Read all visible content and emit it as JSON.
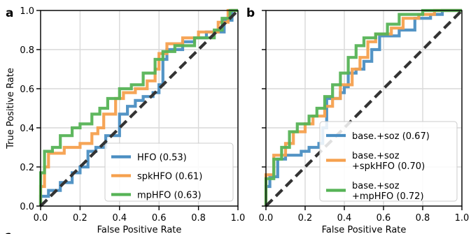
{
  "chart_data": [
    {
      "type": "line",
      "panel_label": "a",
      "xlabel": "False Positive Rate",
      "ylabel": "True Positive Rate",
      "xlim": [
        0,
        1
      ],
      "ylim": [
        0,
        1
      ],
      "xticks": [
        "0.0",
        "0.2",
        "0.4",
        "0.6",
        "0.8",
        "1.0"
      ],
      "yticks": [
        "0.0",
        "0.2",
        "0.4",
        "0.6",
        "0.8",
        "1.0"
      ],
      "show_y_tick_labels": true,
      "grid": true,
      "legend_position": "lower-right",
      "chance_line": true,
      "series": [
        {
          "name": "HFO (0.53)",
          "color": "#4a8ec2",
          "points": [
            [
              0,
              0
            ],
            [
              0,
              0.05
            ],
            [
              0.04,
              0.05
            ],
            [
              0.04,
              0.08
            ],
            [
              0.1,
              0.08
            ],
            [
              0.1,
              0.12
            ],
            [
              0.16,
              0.12
            ],
            [
              0.16,
              0.17
            ],
            [
              0.2,
              0.17
            ],
            [
              0.2,
              0.2
            ],
            [
              0.24,
              0.2
            ],
            [
              0.24,
              0.28
            ],
            [
              0.28,
              0.28
            ],
            [
              0.28,
              0.3
            ],
            [
              0.33,
              0.3
            ],
            [
              0.33,
              0.36
            ],
            [
              0.4,
              0.36
            ],
            [
              0.4,
              0.47
            ],
            [
              0.44,
              0.47
            ],
            [
              0.44,
              0.51
            ],
            [
              0.48,
              0.51
            ],
            [
              0.48,
              0.54
            ],
            [
              0.52,
              0.54
            ],
            [
              0.52,
              0.56
            ],
            [
              0.57,
              0.56
            ],
            [
              0.57,
              0.58
            ],
            [
              0.6,
              0.58
            ],
            [
              0.6,
              0.62
            ],
            [
              0.62,
              0.62
            ],
            [
              0.62,
              0.75
            ],
            [
              0.64,
              0.75
            ],
            [
              0.64,
              0.8
            ],
            [
              0.72,
              0.8
            ],
            [
              0.72,
              0.84
            ],
            [
              0.78,
              0.84
            ],
            [
              0.78,
              0.86
            ],
            [
              0.84,
              0.86
            ],
            [
              0.84,
              0.89
            ],
            [
              0.93,
              0.89
            ],
            [
              0.93,
              0.95
            ],
            [
              0.97,
              0.95
            ],
            [
              0.97,
              1.0
            ],
            [
              1.0,
              1.0
            ]
          ]
        },
        {
          "name": "spkHFO (0.61)",
          "color": "#f5a04e",
          "points": [
            [
              0,
              0
            ],
            [
              0,
              0.1
            ],
            [
              0.02,
              0.1
            ],
            [
              0.02,
              0.2
            ],
            [
              0.04,
              0.2
            ],
            [
              0.04,
              0.27
            ],
            [
              0.12,
              0.27
            ],
            [
              0.12,
              0.3
            ],
            [
              0.2,
              0.3
            ],
            [
              0.2,
              0.32
            ],
            [
              0.26,
              0.32
            ],
            [
              0.26,
              0.37
            ],
            [
              0.29,
              0.37
            ],
            [
              0.29,
              0.4
            ],
            [
              0.32,
              0.4
            ],
            [
              0.32,
              0.47
            ],
            [
              0.38,
              0.47
            ],
            [
              0.38,
              0.55
            ],
            [
              0.42,
              0.55
            ],
            [
              0.42,
              0.58
            ],
            [
              0.48,
              0.58
            ],
            [
              0.48,
              0.6
            ],
            [
              0.54,
              0.6
            ],
            [
              0.54,
              0.64
            ],
            [
              0.58,
              0.64
            ],
            [
              0.58,
              0.7
            ],
            [
              0.6,
              0.7
            ],
            [
              0.6,
              0.78
            ],
            [
              0.64,
              0.78
            ],
            [
              0.64,
              0.83
            ],
            [
              0.72,
              0.83
            ],
            [
              0.72,
              0.86
            ],
            [
              0.8,
              0.86
            ],
            [
              0.8,
              0.89
            ],
            [
              0.9,
              0.89
            ],
            [
              0.9,
              0.94
            ],
            [
              0.95,
              0.94
            ],
            [
              0.95,
              1.0
            ],
            [
              1.0,
              1.0
            ]
          ]
        },
        {
          "name": "mpHFO (0.63)",
          "color": "#56b356",
          "points": [
            [
              0,
              0
            ],
            [
              0,
              0.17
            ],
            [
              0.02,
              0.17
            ],
            [
              0.02,
              0.28
            ],
            [
              0.06,
              0.28
            ],
            [
              0.06,
              0.3
            ],
            [
              0.1,
              0.3
            ],
            [
              0.1,
              0.36
            ],
            [
              0.16,
              0.36
            ],
            [
              0.16,
              0.4
            ],
            [
              0.2,
              0.4
            ],
            [
              0.2,
              0.42
            ],
            [
              0.26,
              0.42
            ],
            [
              0.26,
              0.47
            ],
            [
              0.3,
              0.47
            ],
            [
              0.3,
              0.5
            ],
            [
              0.34,
              0.5
            ],
            [
              0.34,
              0.55
            ],
            [
              0.4,
              0.55
            ],
            [
              0.4,
              0.6
            ],
            [
              0.46,
              0.6
            ],
            [
              0.46,
              0.62
            ],
            [
              0.52,
              0.62
            ],
            [
              0.52,
              0.68
            ],
            [
              0.58,
              0.68
            ],
            [
              0.58,
              0.75
            ],
            [
              0.62,
              0.75
            ],
            [
              0.62,
              0.79
            ],
            [
              0.68,
              0.79
            ],
            [
              0.68,
              0.82
            ],
            [
              0.78,
              0.82
            ],
            [
              0.78,
              0.86
            ],
            [
              0.88,
              0.86
            ],
            [
              0.88,
              0.9
            ],
            [
              0.92,
              0.9
            ],
            [
              0.92,
              0.96
            ],
            [
              0.96,
              0.96
            ],
            [
              0.96,
              1.0
            ],
            [
              1.0,
              1.0
            ]
          ]
        }
      ]
    },
    {
      "type": "line",
      "panel_label": "b",
      "xlabel": "False Positive Rate",
      "ylabel": "",
      "xlim": [
        0,
        1
      ],
      "ylim": [
        0,
        1
      ],
      "xticks": [
        "0.0",
        "0.2",
        "0.4",
        "0.6",
        "0.8",
        "1.0"
      ],
      "yticks": [
        "0.0",
        "0.2",
        "0.4",
        "0.6",
        "0.8",
        "1.0"
      ],
      "show_y_tick_labels": false,
      "grid": true,
      "legend_position": "lower-right",
      "chance_line": true,
      "series": [
        {
          "name": "base.+soz (0.67)",
          "color": "#4a8ec2",
          "points": [
            [
              0,
              0
            ],
            [
              0,
              0.1
            ],
            [
              0.02,
              0.1
            ],
            [
              0.02,
              0.15
            ],
            [
              0.06,
              0.15
            ],
            [
              0.06,
              0.24
            ],
            [
              0.1,
              0.24
            ],
            [
              0.1,
              0.26
            ],
            [
              0.18,
              0.26
            ],
            [
              0.18,
              0.28
            ],
            [
              0.22,
              0.28
            ],
            [
              0.22,
              0.3
            ],
            [
              0.27,
              0.3
            ],
            [
              0.27,
              0.32
            ],
            [
              0.29,
              0.32
            ],
            [
              0.29,
              0.4
            ],
            [
              0.31,
              0.4
            ],
            [
              0.31,
              0.55
            ],
            [
              0.38,
              0.55
            ],
            [
              0.38,
              0.58
            ],
            [
              0.4,
              0.58
            ],
            [
              0.4,
              0.61
            ],
            [
              0.42,
              0.61
            ],
            [
              0.42,
              0.68
            ],
            [
              0.46,
              0.68
            ],
            [
              0.46,
              0.7
            ],
            [
              0.5,
              0.7
            ],
            [
              0.5,
              0.74
            ],
            [
              0.54,
              0.74
            ],
            [
              0.54,
              0.8
            ],
            [
              0.58,
              0.8
            ],
            [
              0.58,
              0.87
            ],
            [
              0.68,
              0.87
            ],
            [
              0.68,
              0.9
            ],
            [
              0.76,
              0.9
            ],
            [
              0.76,
              0.96
            ],
            [
              0.84,
              0.96
            ],
            [
              0.84,
              0.98
            ],
            [
              0.9,
              0.98
            ],
            [
              0.9,
              1.0
            ],
            [
              1.0,
              1.0
            ]
          ]
        },
        {
          "name": "base.+soz\n+spkHFO (0.70)",
          "color": "#f5a04e",
          "points": [
            [
              0,
              0
            ],
            [
              0,
              0.16
            ],
            [
              0.04,
              0.16
            ],
            [
              0.04,
              0.26
            ],
            [
              0.1,
              0.26
            ],
            [
              0.1,
              0.32
            ],
            [
              0.14,
              0.32
            ],
            [
              0.14,
              0.38
            ],
            [
              0.2,
              0.38
            ],
            [
              0.2,
              0.42
            ],
            [
              0.24,
              0.42
            ],
            [
              0.24,
              0.46
            ],
            [
              0.3,
              0.46
            ],
            [
              0.3,
              0.51
            ],
            [
              0.34,
              0.51
            ],
            [
              0.34,
              0.55
            ],
            [
              0.38,
              0.55
            ],
            [
              0.38,
              0.62
            ],
            [
              0.44,
              0.62
            ],
            [
              0.44,
              0.7
            ],
            [
              0.48,
              0.7
            ],
            [
              0.48,
              0.76
            ],
            [
              0.52,
              0.76
            ],
            [
              0.52,
              0.84
            ],
            [
              0.56,
              0.84
            ],
            [
              0.56,
              0.88
            ],
            [
              0.64,
              0.88
            ],
            [
              0.64,
              0.91
            ],
            [
              0.7,
              0.91
            ],
            [
              0.7,
              0.96
            ],
            [
              0.78,
              0.96
            ],
            [
              0.78,
              0.98
            ],
            [
              0.86,
              0.98
            ],
            [
              0.86,
              1.0
            ],
            [
              1.0,
              1.0
            ]
          ]
        },
        {
          "name": "base.+soz\n+mpHFO (0.72)",
          "color": "#56b356",
          "points": [
            [
              0,
              0
            ],
            [
              0,
              0.14
            ],
            [
              0.04,
              0.14
            ],
            [
              0.04,
              0.24
            ],
            [
              0.08,
              0.24
            ],
            [
              0.08,
              0.3
            ],
            [
              0.12,
              0.3
            ],
            [
              0.12,
              0.38
            ],
            [
              0.16,
              0.38
            ],
            [
              0.16,
              0.42
            ],
            [
              0.22,
              0.42
            ],
            [
              0.22,
              0.46
            ],
            [
              0.26,
              0.46
            ],
            [
              0.26,
              0.5
            ],
            [
              0.3,
              0.5
            ],
            [
              0.3,
              0.56
            ],
            [
              0.34,
              0.56
            ],
            [
              0.34,
              0.62
            ],
            [
              0.38,
              0.62
            ],
            [
              0.38,
              0.68
            ],
            [
              0.42,
              0.68
            ],
            [
              0.42,
              0.76
            ],
            [
              0.46,
              0.76
            ],
            [
              0.46,
              0.82
            ],
            [
              0.5,
              0.82
            ],
            [
              0.5,
              0.86
            ],
            [
              0.56,
              0.86
            ],
            [
              0.56,
              0.88
            ],
            [
              0.62,
              0.88
            ],
            [
              0.62,
              0.93
            ],
            [
              0.68,
              0.93
            ],
            [
              0.68,
              0.98
            ],
            [
              0.8,
              0.98
            ],
            [
              0.8,
              1.0
            ],
            [
              1.0,
              1.0
            ]
          ]
        }
      ]
    }
  ],
  "bottom_panel_label": "c"
}
